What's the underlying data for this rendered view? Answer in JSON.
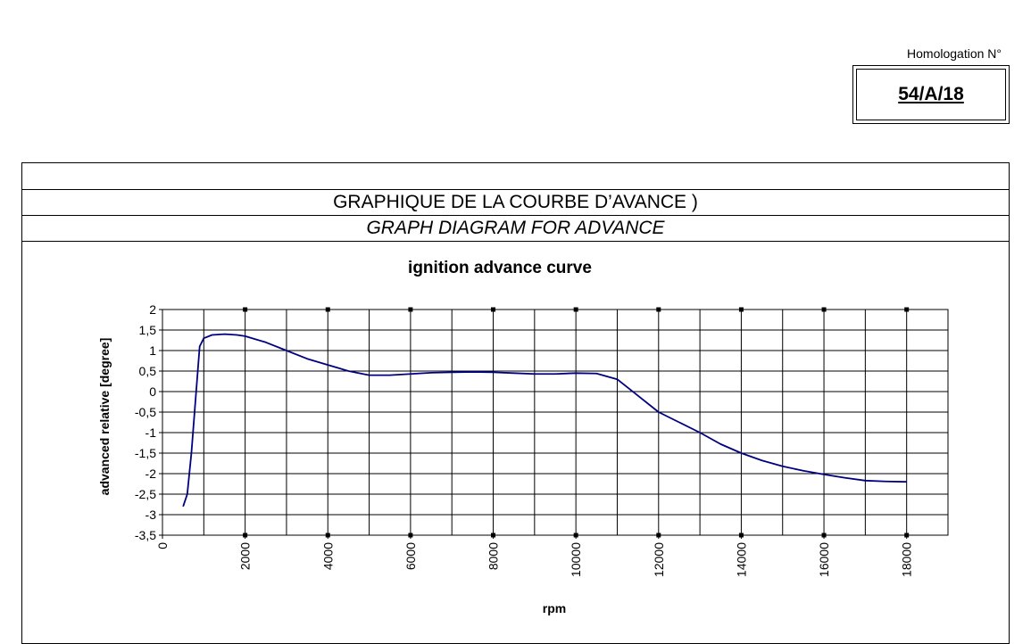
{
  "homologation": {
    "label": "Homologation N°",
    "number": "54/A/18"
  },
  "table": {
    "title_fr": "GRAPHIQUE DE LA COURBE D’AVANCE )",
    "title_en": "GRAPH DIAGRAM FOR ADVANCE"
  },
  "colors": {
    "line": "#000080",
    "grid": "#000000"
  },
  "chart_data": {
    "type": "line",
    "title": "ignition advance curve",
    "xlabel": "rpm",
    "ylabel": "advanced relative [degree]",
    "xlim": [
      0,
      19000
    ],
    "ylim": [
      -3.5,
      2
    ],
    "x_ticks": [
      0,
      2000,
      4000,
      6000,
      8000,
      10000,
      12000,
      14000,
      16000,
      18000
    ],
    "x_tick_labels": [
      "0",
      "2000",
      "4000",
      "6000",
      "8000",
      "10000",
      "12000",
      "14000",
      "16000",
      "18000"
    ],
    "y_ticks": [
      2,
      1.5,
      1,
      0.5,
      0,
      -0.5,
      -1,
      -1.5,
      -2,
      -2.5,
      -3,
      -3.5
    ],
    "y_tick_labels": [
      "2",
      "1,5",
      "1",
      "0,5",
      "0",
      "-0,5",
      "-1",
      "-1,5",
      "-2",
      "-2,5",
      "-3",
      "-3,5"
    ],
    "grid": true,
    "legend": "none",
    "series": [
      {
        "x": [
          500,
          600,
          700,
          800,
          900,
          1000,
          1200,
          1500,
          1800,
          2000,
          2500,
          3000,
          3500,
          4000,
          4500,
          5000,
          5500,
          6000,
          6500,
          7000,
          7500,
          8000,
          8500,
          9000,
          9500,
          10000,
          10500,
          11000,
          11500,
          12000,
          12500,
          13000,
          13500,
          14000,
          14500,
          15000,
          15500,
          16000,
          16500,
          17000,
          17500,
          18000
        ],
        "y": [
          -2.8,
          -2.5,
          -1.5,
          -0.2,
          1.1,
          1.3,
          1.38,
          1.4,
          1.38,
          1.35,
          1.2,
          1.0,
          0.8,
          0.65,
          0.5,
          0.4,
          0.4,
          0.43,
          0.46,
          0.47,
          0.48,
          0.47,
          0.45,
          0.43,
          0.43,
          0.45,
          0.44,
          0.3,
          -0.1,
          -0.5,
          -0.75,
          -1.0,
          -1.28,
          -1.5,
          -1.68,
          -1.82,
          -1.93,
          -2.02,
          -2.1,
          -2.17,
          -2.19,
          -2.2
        ]
      }
    ]
  }
}
